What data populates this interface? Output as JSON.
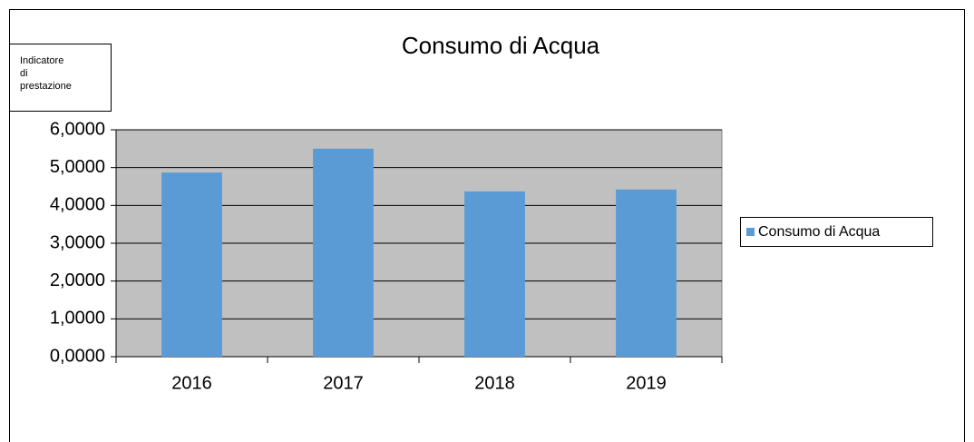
{
  "chart_data": {
    "type": "bar",
    "title": "Consumo di Acqua",
    "y_label": [
      "Indicatore",
      "di",
      "prestazione"
    ],
    "categories": [
      "2016",
      "2017",
      "2018",
      "2019"
    ],
    "series": [
      {
        "name": "Consumo di Acqua",
        "color": "#5b9bd5",
        "values": [
          4.87,
          5.5,
          4.37,
          4.42
        ]
      }
    ],
    "ylim": [
      0,
      6
    ],
    "yticks": [
      {
        "value": 0,
        "label": "0,0000"
      },
      {
        "value": 1,
        "label": "1,0000"
      },
      {
        "value": 2,
        "label": "2,0000"
      },
      {
        "value": 3,
        "label": "3,0000"
      },
      {
        "value": 4,
        "label": "4,0000"
      },
      {
        "value": 5,
        "label": "5,0000"
      },
      {
        "value": 6,
        "label": "6,0000"
      }
    ],
    "grid": true,
    "legend": "right"
  }
}
